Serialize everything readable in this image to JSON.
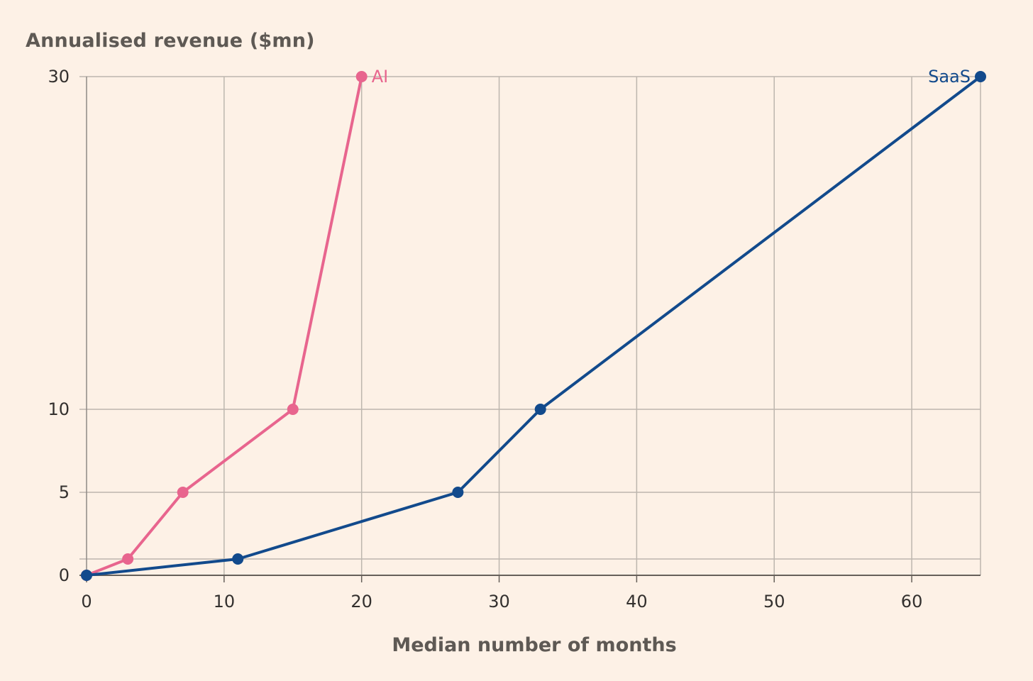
{
  "chart_data": {
    "type": "line",
    "ylabel": "Annualised revenue ($mn)",
    "xlabel": "Median number of months",
    "xlim": [
      0,
      65
    ],
    "ylim": [
      0,
      30
    ],
    "x_ticks": [
      0,
      10,
      20,
      30,
      40,
      50,
      60
    ],
    "y_ticks": [
      0,
      5,
      10,
      30
    ],
    "y_gridlines": [
      1,
      5,
      10,
      30
    ],
    "grid": true,
    "series": [
      {
        "name": "AI",
        "color": "#e8658e",
        "points": [
          {
            "x": 0,
            "y": 0
          },
          {
            "x": 3,
            "y": 1
          },
          {
            "x": 7,
            "y": 5
          },
          {
            "x": 15,
            "y": 10
          },
          {
            "x": 20,
            "y": 30
          }
        ]
      },
      {
        "name": "SaaS",
        "color": "#124a8c",
        "points": [
          {
            "x": 0,
            "y": 0
          },
          {
            "x": 11,
            "y": 1
          },
          {
            "x": 27,
            "y": 5
          },
          {
            "x": 33,
            "y": 10
          },
          {
            "x": 65,
            "y": 30
          }
        ]
      }
    ]
  }
}
